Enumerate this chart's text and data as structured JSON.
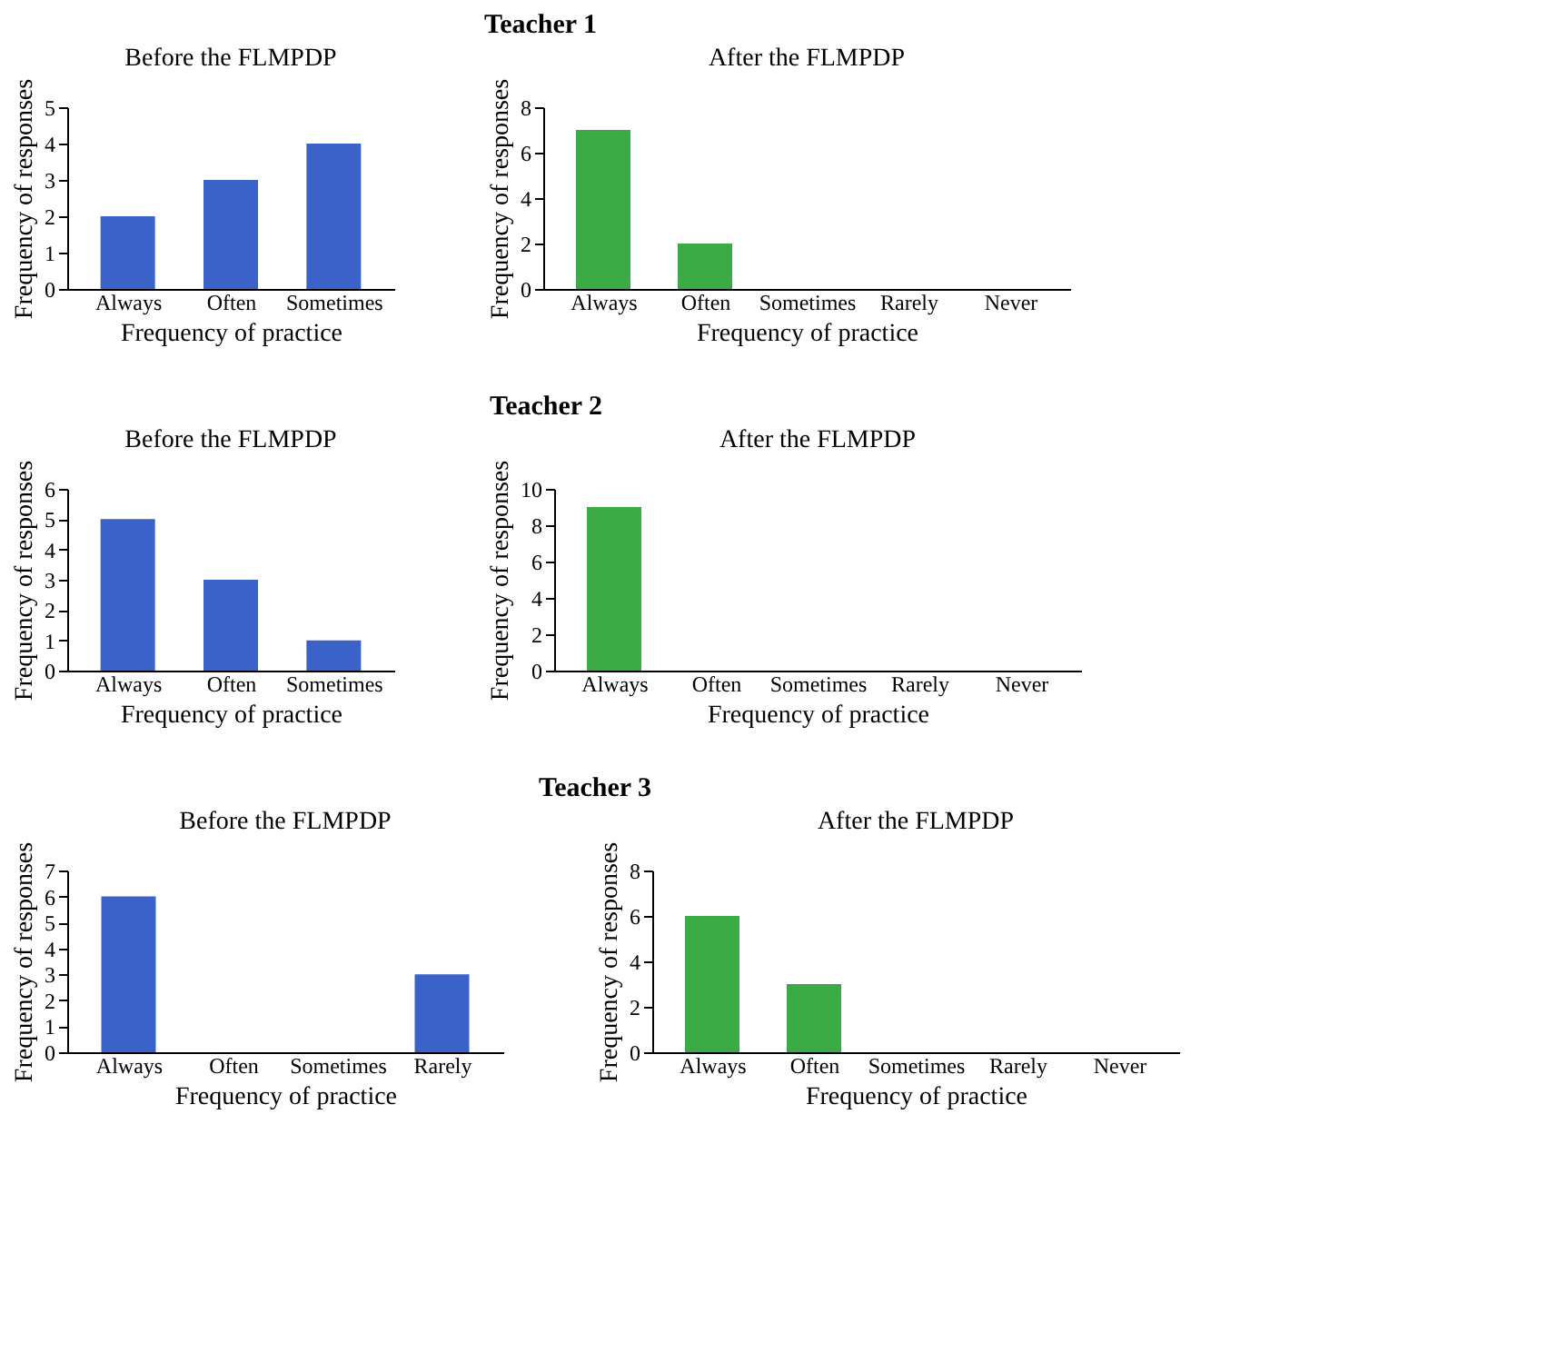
{
  "chart_data": [
    {
      "type": "bar",
      "title": "Before the FLMPDP",
      "annotations": [
        "Teacher 1"
      ],
      "xlabel": "Frequency of practice",
      "ylabel": "Frequency of responses",
      "categories": [
        "Always",
        "Often",
        "Sometimes"
      ],
      "values": [
        2,
        3,
        4
      ],
      "color": "#3b62c8",
      "ylim": [
        0,
        5
      ],
      "yticks": [
        0,
        1,
        2,
        3,
        4,
        5
      ]
    },
    {
      "type": "bar",
      "title": "After the FLMPDP",
      "xlabel": "Frequency of practice",
      "ylabel": "Frequency of responses",
      "categories": [
        "Always",
        "Often",
        "Sometimes",
        "Rarely",
        "Never"
      ],
      "values": [
        7,
        2,
        0,
        0,
        0
      ],
      "color": "#3daa48",
      "ylim": [
        0,
        8
      ],
      "yticks": [
        0,
        2,
        4,
        6,
        8
      ]
    },
    {
      "type": "bar",
      "title": "Before the FLMPDP",
      "annotations": [
        "Teacher 2"
      ],
      "xlabel": "Frequency of practice",
      "ylabel": "Frequency of responses",
      "categories": [
        "Always",
        "Often",
        "Sometimes"
      ],
      "values": [
        5,
        3,
        1
      ],
      "color": "#3b62c8",
      "ylim": [
        0,
        6
      ],
      "yticks": [
        0,
        1,
        2,
        3,
        4,
        5,
        6
      ]
    },
    {
      "type": "bar",
      "title": "After the FLMPDP",
      "xlabel": "Frequency of practice",
      "ylabel": "Frequency of responses",
      "categories": [
        "Always",
        "Often",
        "Sometimes",
        "Rarely",
        "Never"
      ],
      "values": [
        9,
        0,
        0,
        0,
        0
      ],
      "color": "#3daa48",
      "ylim": [
        0,
        10
      ],
      "yticks": [
        0,
        2,
        4,
        6,
        8,
        10
      ]
    },
    {
      "type": "bar",
      "title": "Before the FLMPDP",
      "annotations": [
        "Teacher 3"
      ],
      "xlabel": "Frequency of practice",
      "ylabel": "Frequency of responses",
      "categories": [
        "Always",
        "Often",
        "Sometimes",
        "Rarely"
      ],
      "values": [
        6,
        0,
        0,
        3
      ],
      "color": "#3b62c8",
      "ylim": [
        0,
        7
      ],
      "yticks": [
        0,
        1,
        2,
        3,
        4,
        5,
        6,
        7
      ]
    },
    {
      "type": "bar",
      "title": "After the FLMPDP",
      "xlabel": "Frequency of practice",
      "ylabel": "Frequency of responses",
      "categories": [
        "Always",
        "Often",
        "Sometimes",
        "Rarely",
        "Never"
      ],
      "values": [
        6,
        3,
        0,
        0,
        0
      ],
      "color": "#3daa48",
      "ylim": [
        0,
        8
      ],
      "yticks": [
        0,
        2,
        4,
        6,
        8
      ]
    }
  ]
}
